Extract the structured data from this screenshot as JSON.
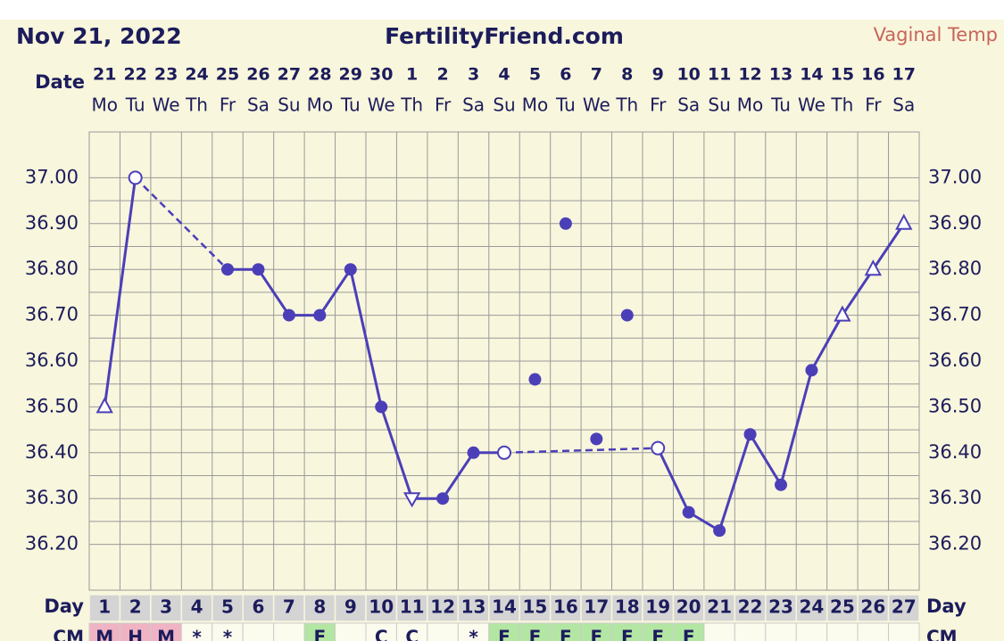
{
  "chart_data": {
    "type": "line",
    "title": "FertilityFriend.com",
    "date": "Nov 21, 2022",
    "temp_type": "Vaginal Temp",
    "date_label": "Date",
    "categories": [
      "21",
      "22",
      "23",
      "24",
      "25",
      "26",
      "27",
      "28",
      "29",
      "30",
      "1",
      "2",
      "3",
      "4",
      "5",
      "6",
      "7",
      "8",
      "9",
      "10",
      "11",
      "12",
      "13",
      "14",
      "15",
      "16",
      "17"
    ],
    "weekdays": [
      "Mo",
      "Tu",
      "We",
      "Th",
      "Fr",
      "Sa",
      "Su",
      "Mo",
      "Tu",
      "We",
      "Th",
      "Fr",
      "Sa",
      "Su",
      "Mo",
      "Tu",
      "We",
      "Th",
      "Fr",
      "Sa",
      "Su",
      "Mo",
      "Tu",
      "We",
      "Th",
      "Fr",
      "Sa"
    ],
    "day_label": "Day",
    "cycle_days": [
      1,
      2,
      3,
      4,
      5,
      6,
      7,
      8,
      9,
      10,
      11,
      12,
      13,
      14,
      15,
      16,
      17,
      18,
      19,
      20,
      21,
      22,
      23,
      24,
      25,
      26,
      27
    ],
    "cm_label": "CM",
    "cm": [
      "M",
      "H",
      "M",
      "*",
      "*",
      null,
      null,
      "F",
      null,
      "C",
      "C",
      null,
      "*",
      "F",
      "F",
      "F",
      "F",
      "F",
      "F",
      "F",
      null,
      null,
      null,
      null,
      null,
      null,
      null
    ],
    "cm_colors": [
      "#efb3c4",
      "#efb3c4",
      "#efb3c4",
      null,
      null,
      null,
      null,
      "#b3e6a3",
      null,
      null,
      null,
      null,
      null,
      "#b3e6a3",
      "#b3e6a3",
      "#b3e6a3",
      "#b3e6a3",
      "#b3e6a3",
      "#b3e6a3",
      "#b3e6a3",
      null,
      null,
      null,
      null,
      null,
      null,
      null
    ],
    "series": [
      {
        "color": "#4b3fb8",
        "values": [
          36.5,
          37.0,
          null,
          null,
          36.8,
          36.8,
          36.7,
          36.7,
          36.8,
          36.5,
          36.3,
          36.3,
          36.4,
          36.4,
          null,
          null,
          null,
          null,
          36.41,
          36.27,
          36.23,
          36.44,
          36.33,
          36.58,
          36.7,
          36.8,
          36.9
        ],
        "markers": [
          "triangle",
          "open",
          null,
          null,
          "dot",
          "dot",
          "dot",
          "dot",
          "dot",
          "dot",
          "triangle-down",
          "dot",
          "dot",
          "open",
          null,
          null,
          null,
          null,
          "open",
          "dot",
          "dot",
          "dot",
          "dot",
          "dot",
          "triangle",
          "triangle",
          "triangle"
        ]
      },
      {
        "color": "#4b3fb8",
        "values": [
          null,
          null,
          null,
          null,
          null,
          null,
          null,
          null,
          null,
          null,
          null,
          null,
          null,
          null,
          36.56,
          36.9,
          36.43,
          36.7,
          null,
          null,
          null,
          null,
          null,
          null,
          null,
          null,
          null
        ],
        "markers": [
          null,
          null,
          null,
          null,
          null,
          null,
          null,
          null,
          null,
          null,
          null,
          null,
          null,
          null,
          "dot",
          "dot",
          "dot",
          "dot",
          null,
          null,
          null,
          null,
          null,
          null,
          null,
          null,
          null
        ]
      }
    ],
    "bridge_gaps": "dashed",
    "ylim": [
      36.1,
      37.1
    ],
    "yticks": [
      {
        "value": 36.2,
        "label": "36.20"
      },
      {
        "value": 36.3,
        "label": "36.30"
      },
      {
        "value": 36.4,
        "label": "36.40"
      },
      {
        "value": 36.5,
        "label": "36.50"
      },
      {
        "value": 36.6,
        "label": "36.60"
      },
      {
        "value": 36.7,
        "label": "36.70"
      },
      {
        "value": 36.8,
        "label": "36.80"
      },
      {
        "value": 36.9,
        "label": "36.90"
      },
      {
        "value": 37.0,
        "label": "37.00"
      }
    ],
    "grid": true
  }
}
